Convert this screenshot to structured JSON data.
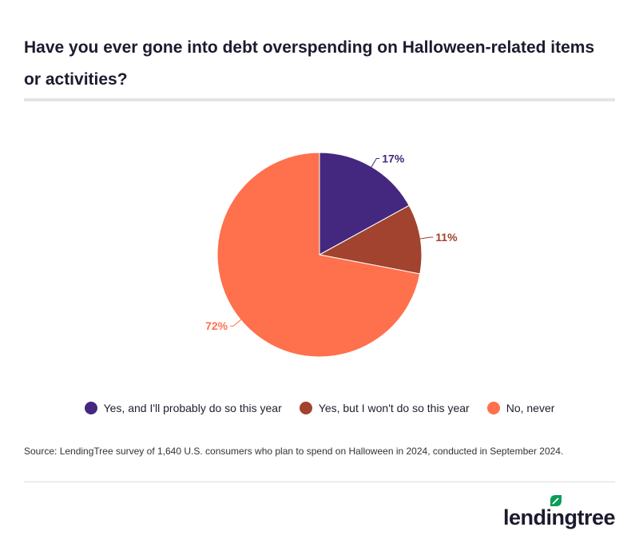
{
  "title": "Have you ever gone into debt overspending on Halloween-related items or activities?",
  "source": "Source: LendingTree survey of 1,640 U.S. consumers who plan to spend on Halloween in 2024, conducted in September 2024.",
  "logo_text": "lendingtree",
  "chart_data": {
    "type": "pie",
    "slices": [
      {
        "label": "Yes, and I'll probably do so this year",
        "value": 17,
        "display": "17%",
        "color": "#44287f"
      },
      {
        "label": "Yes, but I won't do so this year",
        "value": 11,
        "display": "11%",
        "color": "#a1432e"
      },
      {
        "label": "No, never",
        "value": 72,
        "display": "72%",
        "color": "#ff704c"
      }
    ],
    "legend_position": "bottom"
  }
}
